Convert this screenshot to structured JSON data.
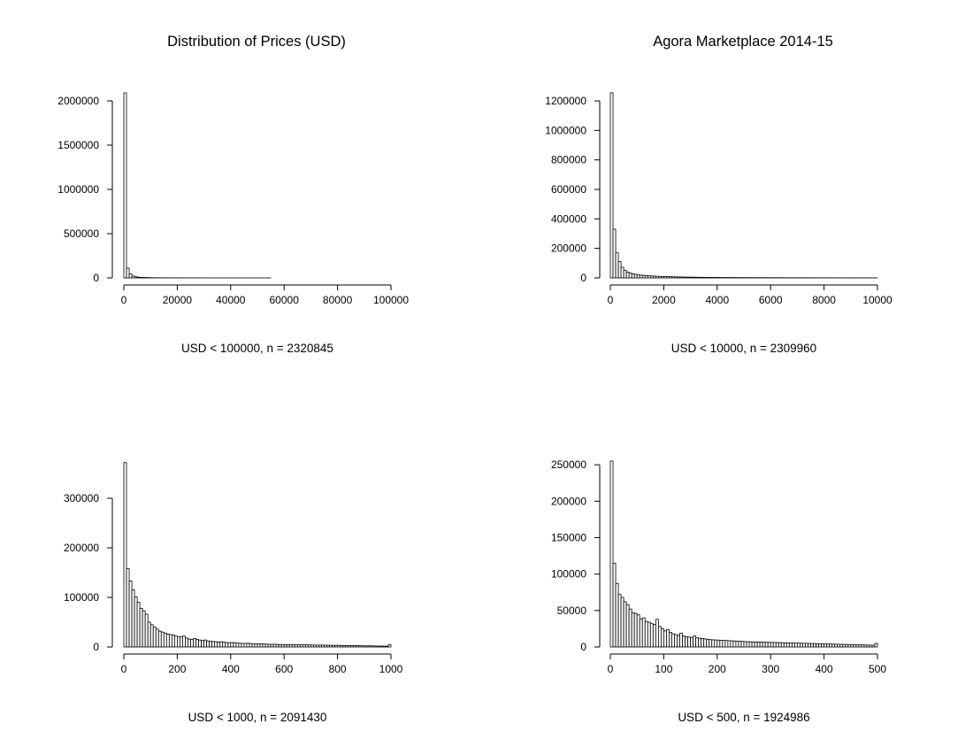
{
  "figure": {
    "title_left": "Distribution of Prices (USD)",
    "title_right": "Agora Marketplace 2014-15"
  },
  "chart_data": [
    {
      "type": "bar",
      "xlabel": "USD < 100000, n = 2320845",
      "xlim": [
        0,
        100000
      ],
      "ylim": [
        0,
        2100000
      ],
      "bin_width": 1000,
      "x_ticks": [
        0,
        20000,
        40000,
        60000,
        80000,
        100000
      ],
      "y_ticks": [
        0,
        500000,
        1000000,
        1500000,
        2000000
      ],
      "values": [
        2090000,
        110000,
        45000,
        22000,
        13000,
        8000,
        6000,
        5000,
        4000,
        3000,
        2500,
        2000,
        1800,
        1600,
        1400,
        1200,
        1000,
        900,
        800,
        700,
        600,
        550,
        500,
        450,
        400,
        380,
        350,
        320,
        300,
        280,
        260,
        240,
        220,
        200,
        190,
        180,
        170,
        160,
        150,
        140,
        130,
        120,
        110,
        100,
        95,
        90,
        85,
        80,
        75,
        70,
        65,
        60,
        58,
        55,
        52,
        50,
        48,
        46,
        44,
        42,
        40,
        38,
        36,
        34,
        32,
        30,
        29,
        28,
        27,
        26,
        25,
        24,
        23,
        22,
        21,
        20,
        19,
        18,
        17,
        16,
        15,
        15,
        14,
        14,
        13,
        13,
        12,
        12,
        11,
        11,
        10,
        10,
        9,
        9,
        8,
        8,
        8,
        7,
        7,
        7
      ]
    },
    {
      "type": "bar",
      "xlabel": "USD < 10000, n = 2309960",
      "xlim": [
        0,
        10000
      ],
      "ylim": [
        0,
        1260000
      ],
      "bin_width": 100,
      "x_ticks": [
        0,
        2000,
        4000,
        6000,
        8000,
        10000
      ],
      "y_ticks": [
        0,
        200000,
        400000,
        600000,
        800000,
        1000000,
        1200000
      ],
      "values": [
        1255000,
        330000,
        170000,
        110000,
        72000,
        52000,
        40000,
        33000,
        28000,
        24000,
        21000,
        19000,
        17000,
        15000,
        14000,
        13000,
        12000,
        11000,
        10000,
        9500,
        9000,
        8500,
        8000,
        7500,
        7000,
        6600,
        6200,
        5800,
        5400,
        5100,
        4800,
        4500,
        4200,
        4000,
        3800,
        3600,
        3400,
        3200,
        3000,
        2900,
        2800,
        2700,
        2600,
        2500,
        2400,
        2300,
        2200,
        2100,
        2000,
        1900,
        1850,
        1800,
        1750,
        1700,
        1650,
        1600,
        1550,
        1500,
        1450,
        1400,
        1350,
        1300,
        1250,
        1200,
        1150,
        1100,
        1050,
        1000,
        980,
        960,
        940,
        920,
        900,
        880,
        860,
        840,
        820,
        800,
        780,
        760,
        740,
        720,
        700,
        680,
        660,
        640,
        620,
        600,
        580,
        560,
        540,
        520,
        500,
        480,
        460,
        440,
        420,
        400,
        380,
        360
      ]
    },
    {
      "type": "bar",
      "xlabel": "USD < 1000, n = 2091430",
      "xlim": [
        0,
        1000
      ],
      "ylim": [
        0,
        375000
      ],
      "bin_width": 10,
      "x_ticks": [
        0,
        200,
        400,
        600,
        800,
        1000
      ],
      "y_ticks": [
        0,
        100000,
        200000,
        300000
      ],
      "values": [
        372000,
        158000,
        133000,
        115000,
        101000,
        90000,
        78000,
        73000,
        66000,
        50000,
        45000,
        40000,
        36000,
        32000,
        30000,
        28000,
        26000,
        25000,
        24000,
        22000,
        21000,
        20000,
        22000,
        18000,
        16000,
        15000,
        17000,
        15000,
        14000,
        13000,
        14000,
        12000,
        11500,
        11000,
        10500,
        10000,
        10500,
        9500,
        9000,
        8500,
        9000,
        8000,
        7800,
        7500,
        7200,
        7000,
        7500,
        6800,
        6500,
        6200,
        6000,
        6300,
        5800,
        5600,
        5400,
        5200,
        5500,
        5000,
        4900,
        4800,
        4700,
        4600,
        4900,
        4500,
        4400,
        4300,
        4200,
        4100,
        4300,
        4000,
        3900,
        3800,
        3700,
        3600,
        3800,
        3500,
        3400,
        3300,
        3200,
        3100,
        3300,
        3000,
        2900,
        2800,
        2700,
        2600,
        2800,
        2500,
        2400,
        2300,
        2200,
        2100,
        2300,
        2000,
        1900,
        1800,
        1700,
        1600,
        1500,
        4500
      ]
    },
    {
      "type": "bar",
      "xlabel": "USD < 500, n = 1924986",
      "xlim": [
        0,
        500
      ],
      "ylim": [
        0,
        255000
      ],
      "bin_width": 5,
      "x_ticks": [
        0,
        100,
        200,
        300,
        400,
        500
      ],
      "y_ticks": [
        0,
        50000,
        100000,
        150000,
        200000,
        250000
      ],
      "values": [
        255000,
        115000,
        87000,
        72000,
        68000,
        62000,
        58000,
        52000,
        47000,
        46000,
        44000,
        38000,
        40000,
        35000,
        34000,
        32000,
        31000,
        38000,
        28000,
        25000,
        22000,
        24000,
        20000,
        18000,
        17000,
        16000,
        19000,
        15000,
        14000,
        13500,
        13000,
        15000,
        12500,
        12000,
        11500,
        11000,
        10500,
        10000,
        9800,
        9600,
        9400,
        9200,
        9000,
        8800,
        8600,
        8400,
        8200,
        8000,
        7800,
        7600,
        7400,
        7200,
        7000,
        6900,
        6800,
        6700,
        6600,
        6500,
        6400,
        6300,
        6200,
        6100,
        6000,
        5900,
        5800,
        5700,
        5600,
        5500,
        5400,
        5300,
        5200,
        5100,
        5000,
        4900,
        4800,
        4700,
        4600,
        4500,
        4400,
        4300,
        4200,
        4100,
        4000,
        3900,
        3800,
        3700,
        3600,
        3500,
        3400,
        3300,
        3200,
        3100,
        3000,
        2900,
        2800,
        2700,
        2600,
        2500,
        2400,
        4800
      ]
    }
  ]
}
